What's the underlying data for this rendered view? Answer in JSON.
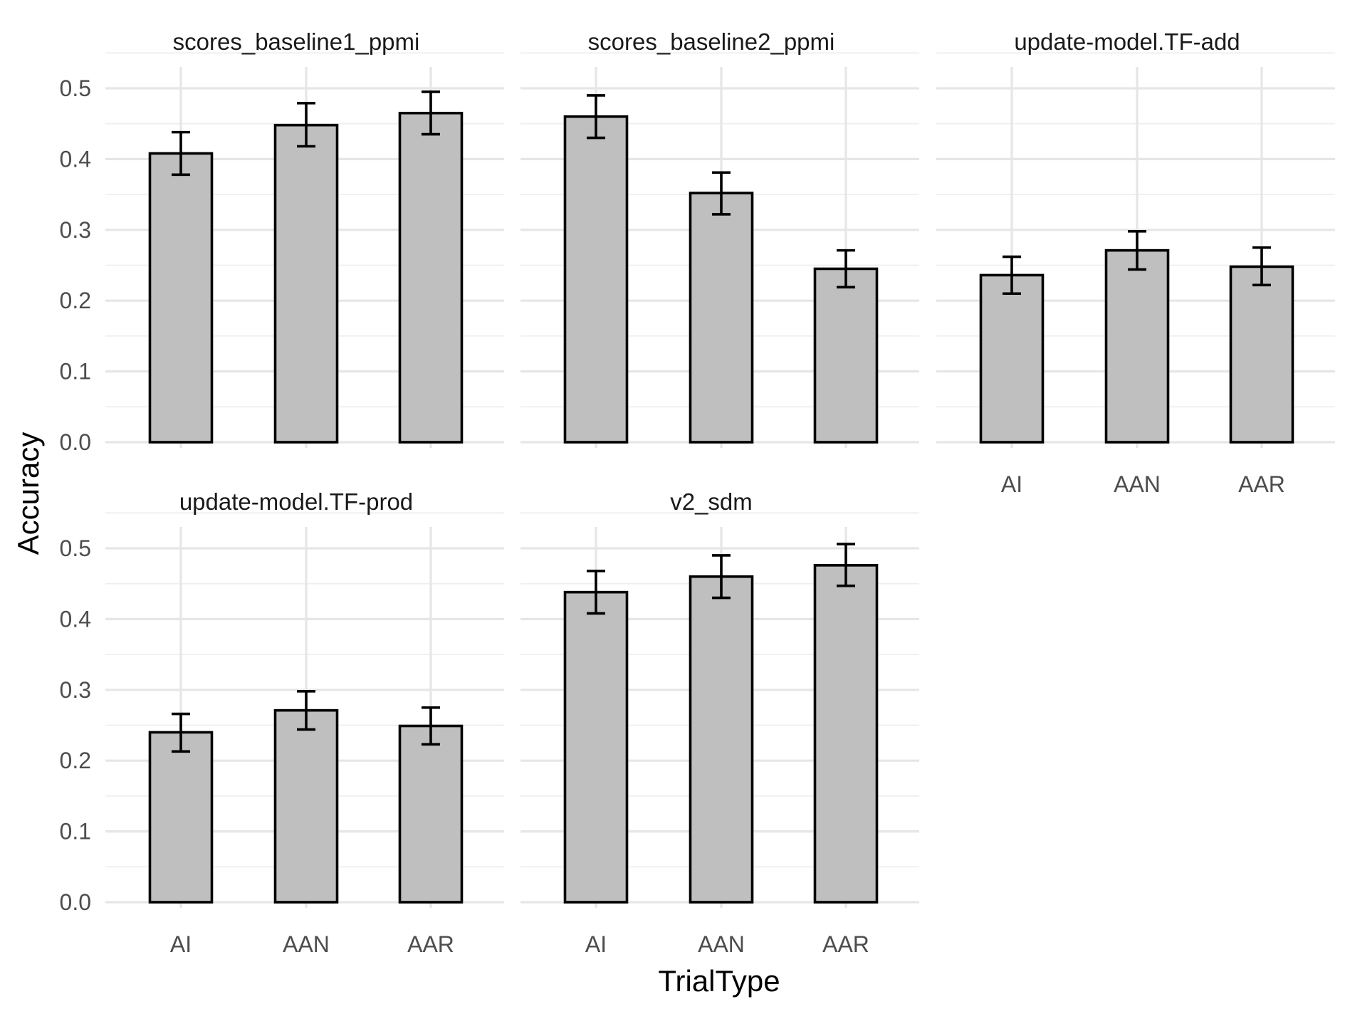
{
  "chart_data": {
    "type": "bar",
    "layout": "facet_wrap",
    "xlabel": "TrialType",
    "ylabel": "Accuracy",
    "categories": [
      "AI",
      "AAN",
      "AAR"
    ],
    "ylim": [
      0,
      0.5
    ],
    "yticks": [
      "0.0",
      "0.1",
      "0.2",
      "0.3",
      "0.4",
      "0.5"
    ],
    "grid": true,
    "colors": {
      "bar_fill": "#bfbfbf",
      "bar_stroke": "#000000"
    },
    "panels": [
      {
        "title": "scores_baseline1_ppmi",
        "values": [
          0.408,
          0.448,
          0.465
        ],
        "error_low": [
          0.378,
          0.418,
          0.435
        ],
        "error_high": [
          0.438,
          0.479,
          0.495
        ]
      },
      {
        "title": "scores_baseline2_ppmi",
        "values": [
          0.46,
          0.352,
          0.245
        ],
        "error_low": [
          0.43,
          0.322,
          0.219
        ],
        "error_high": [
          0.49,
          0.381,
          0.271
        ]
      },
      {
        "title": "update-model.TF-add",
        "values": [
          0.236,
          0.271,
          0.248
        ],
        "error_low": [
          0.21,
          0.244,
          0.222
        ],
        "error_high": [
          0.262,
          0.298,
          0.275
        ]
      },
      {
        "title": "update-model.TF-prod",
        "values": [
          0.24,
          0.271,
          0.249
        ],
        "error_low": [
          0.213,
          0.244,
          0.223
        ],
        "error_high": [
          0.266,
          0.298,
          0.275
        ]
      },
      {
        "title": "v2_sdm",
        "values": [
          0.438,
          0.46,
          0.476
        ],
        "error_low": [
          0.408,
          0.43,
          0.447
        ],
        "error_high": [
          0.468,
          0.49,
          0.506
        ]
      }
    ]
  }
}
